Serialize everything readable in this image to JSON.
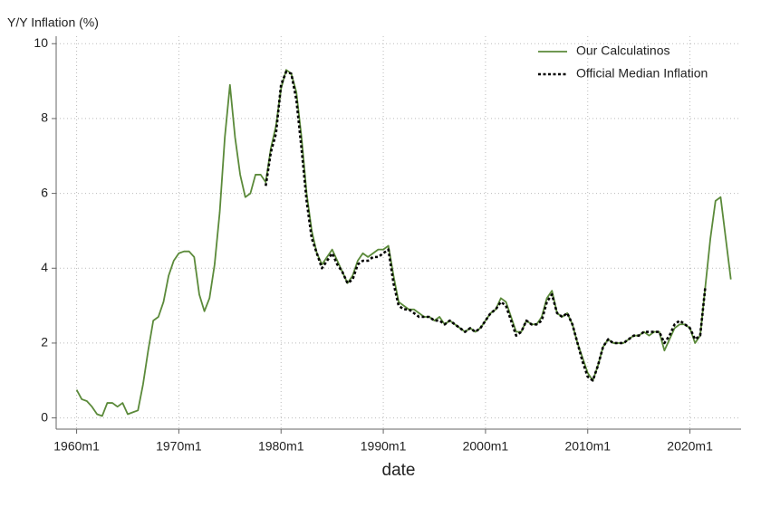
{
  "chart_data": {
    "type": "line",
    "ylabel": "Y/Y Inflation (%)",
    "xlabel": "date",
    "x": [
      1960,
      1960.5,
      1961,
      1961.5,
      1962,
      1962.5,
      1963,
      1963.5,
      1964,
      1964.5,
      1965,
      1965.5,
      1966,
      1966.5,
      1967,
      1967.5,
      1968,
      1968.5,
      1969,
      1969.5,
      1970,
      1970.5,
      1971,
      1971.5,
      1972,
      1972.5,
      1973,
      1973.5,
      1974,
      1974.5,
      1975,
      1975.5,
      1976,
      1976.5,
      1977,
      1977.5,
      1978,
      1978.5,
      1979,
      1979.5,
      1980,
      1980.5,
      1981,
      1981.5,
      1982,
      1982.5,
      1983,
      1983.5,
      1984,
      1984.5,
      1985,
      1985.5,
      1986,
      1986.5,
      1987,
      1987.5,
      1988,
      1988.5,
      1989,
      1989.5,
      1990,
      1990.5,
      1991,
      1991.5,
      1992,
      1992.5,
      1993,
      1993.5,
      1994,
      1994.5,
      1995,
      1995.5,
      1996,
      1996.5,
      1997,
      1997.5,
      1998,
      1998.5,
      1999,
      1999.5,
      2000,
      2000.5,
      2001,
      2001.5,
      2002,
      2002.5,
      2003,
      2003.5,
      2004,
      2004.5,
      2005,
      2005.5,
      2006,
      2006.5,
      2007,
      2007.5,
      2008,
      2008.5,
      2009,
      2009.5,
      2010,
      2010.5,
      2011,
      2011.5,
      2012,
      2012.5,
      2013,
      2013.5,
      2014,
      2014.5,
      2015,
      2015.5,
      2016,
      2016.5,
      2017,
      2017.5,
      2018,
      2018.5,
      2019,
      2019.5,
      2020,
      2020.5,
      2021,
      2021.5,
      2022,
      2022.5,
      2023,
      2023.5,
      2024
    ],
    "series": [
      {
        "name": "Our Calculatinos",
        "color": "#5b8a3a",
        "dash": false,
        "values": [
          0.75,
          0.5,
          0.45,
          0.3,
          0.1,
          0.05,
          0.4,
          0.4,
          0.3,
          0.4,
          0.1,
          0.15,
          0.2,
          0.9,
          1.8,
          2.6,
          2.7,
          3.1,
          3.8,
          4.2,
          4.4,
          4.45,
          4.45,
          4.3,
          3.3,
          2.85,
          3.2,
          4.1,
          5.5,
          7.5,
          8.9,
          7.5,
          6.5,
          5.9,
          6.0,
          6.5,
          6.5,
          6.3,
          7.2,
          7.8,
          8.8,
          9.3,
          9.2,
          8.7,
          7.5,
          6.0,
          5.0,
          4.4,
          4.1,
          4.3,
          4.5,
          4.2,
          3.9,
          3.6,
          3.8,
          4.2,
          4.4,
          4.3,
          4.4,
          4.5,
          4.5,
          4.6,
          3.8,
          3.1,
          3.0,
          2.9,
          2.9,
          2.8,
          2.7,
          2.7,
          2.6,
          2.7,
          2.5,
          2.6,
          2.5,
          2.4,
          2.3,
          2.4,
          2.3,
          2.4,
          2.6,
          2.8,
          2.9,
          3.2,
          3.1,
          2.7,
          2.3,
          2.3,
          2.6,
          2.5,
          2.5,
          2.7,
          3.2,
          3.4,
          2.8,
          2.7,
          2.8,
          2.5,
          2.0,
          1.6,
          1.2,
          1.0,
          1.4,
          1.9,
          2.1,
          2.0,
          2.0,
          2.0,
          2.1,
          2.2,
          2.2,
          2.3,
          2.2,
          2.3,
          2.3,
          1.8,
          2.1,
          2.4,
          2.5,
          2.5,
          2.4,
          2.0,
          2.2,
          3.5,
          4.8,
          5.8,
          5.9,
          4.8,
          3.7
        ]
      },
      {
        "name": "Official Median Inflation",
        "color": "#000000",
        "dash": true,
        "values": [
          null,
          null,
          null,
          null,
          null,
          null,
          null,
          null,
          null,
          null,
          null,
          null,
          null,
          null,
          null,
          null,
          null,
          null,
          null,
          null,
          null,
          null,
          null,
          null,
          null,
          null,
          null,
          null,
          null,
          null,
          null,
          null,
          null,
          null,
          null,
          null,
          null,
          6.2,
          7.1,
          7.6,
          8.9,
          9.25,
          9.2,
          8.5,
          7.2,
          5.8,
          4.8,
          4.4,
          4.0,
          4.2,
          4.4,
          4.1,
          3.9,
          3.6,
          3.7,
          4.1,
          4.2,
          4.2,
          4.3,
          4.3,
          4.4,
          4.5,
          3.6,
          3.0,
          2.9,
          2.9,
          2.8,
          2.7,
          2.7,
          2.7,
          2.6,
          2.6,
          2.5,
          2.6,
          2.5,
          2.4,
          2.3,
          2.4,
          2.3,
          2.4,
          2.6,
          2.8,
          2.9,
          3.1,
          3.0,
          2.6,
          2.2,
          2.3,
          2.6,
          2.5,
          2.5,
          2.6,
          3.1,
          3.3,
          2.8,
          2.7,
          2.8,
          2.5,
          2.0,
          1.5,
          1.1,
          1.0,
          1.4,
          1.9,
          2.1,
          2.0,
          2.0,
          2.0,
          2.1,
          2.2,
          2.2,
          2.3,
          2.3,
          2.3,
          2.3,
          2.0,
          2.2,
          2.5,
          2.6,
          2.5,
          2.4,
          2.1,
          2.2,
          3.5,
          null,
          null,
          null,
          null,
          null
        ]
      }
    ],
    "xlim": [
      1958,
      2025
    ],
    "ylim": [
      -0.3,
      10.2
    ],
    "xticks": [
      {
        "value": 1960,
        "label": "1960m1"
      },
      {
        "value": 1970,
        "label": "1970m1"
      },
      {
        "value": 1980,
        "label": "1980m1"
      },
      {
        "value": 1990,
        "label": "1990m1"
      },
      {
        "value": 2000,
        "label": "2000m1"
      },
      {
        "value": 2010,
        "label": "2010m1"
      },
      {
        "value": 2020,
        "label": "2020m1"
      }
    ],
    "yticks": [
      0,
      2,
      4,
      6,
      8,
      10
    ],
    "grid": true,
    "legend": "top-right"
  }
}
